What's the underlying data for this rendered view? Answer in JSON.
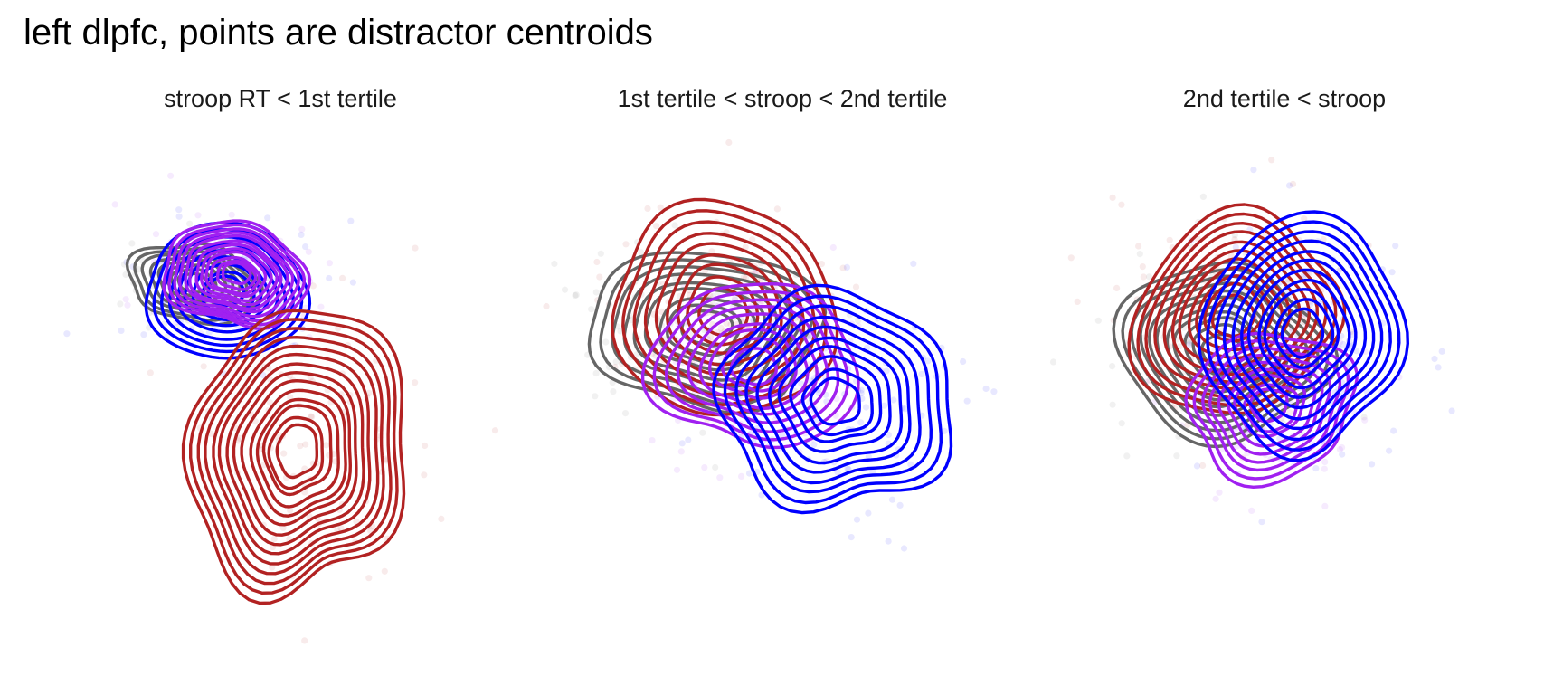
{
  "title": "left dlpfc, points are distractor centroids",
  "colors": {
    "red": "#b22222",
    "blue": "#0000ff",
    "purple": "#a020f0",
    "gray": "#666666"
  },
  "chart_data": [
    {
      "type": "scatter",
      "subtitle": "stroop RT < 1st tertile",
      "grid": false,
      "legend": "none",
      "series": [
        {
          "color": "gray",
          "center": [
            185,
            175
          ],
          "spread": [
            70,
            45
          ],
          "rot": 0.1,
          "levels": 8
        },
        {
          "color": "blue",
          "center": [
            220,
            185
          ],
          "spread": [
            92,
            72
          ],
          "rot": 0.0,
          "levels": 9
        },
        {
          "color": "purple",
          "center": [
            230,
            165
          ],
          "spread": [
            78,
            58
          ],
          "rot": 0.2,
          "levels": 12
        },
        {
          "color": "red",
          "center": [
            300,
            360
          ],
          "spread": [
            120,
            158
          ],
          "rot": 0.05,
          "levels": 14
        }
      ]
    },
    {
      "type": "scatter",
      "subtitle": "1st tertile < stroop < 2nd tertile",
      "grid": false,
      "legend": "none",
      "series": [
        {
          "color": "gray",
          "center": [
            195,
            225
          ],
          "spread": [
            128,
            88
          ],
          "rot": 0.05,
          "levels": 9
        },
        {
          "color": "red",
          "center": [
            215,
            205
          ],
          "spread": [
            122,
            118
          ],
          "rot": 0.1,
          "levels": 9
        },
        {
          "color": "purple",
          "center": [
            250,
            265
          ],
          "spread": [
            108,
            95
          ],
          "rot": 0.0,
          "levels": 9
        },
        {
          "color": "blue",
          "center": [
            340,
            305
          ],
          "spread": [
            130,
            118
          ],
          "rot": 0.3,
          "levels": 10
        }
      ]
    },
    {
      "type": "scatter",
      "subtitle": "2nd tertile < stroop",
      "grid": false,
      "legend": "none",
      "series": [
        {
          "color": "gray",
          "center": [
            210,
            250
          ],
          "spread": [
            112,
            98
          ],
          "rot": 0.05,
          "levels": 11
        },
        {
          "color": "red",
          "center": [
            225,
            210
          ],
          "spread": [
            112,
            110
          ],
          "rot": 0.0,
          "levels": 11
        },
        {
          "color": "purple",
          "center": [
            265,
            310
          ],
          "spread": [
            95,
            78
          ],
          "rot": 0.0,
          "levels": 9
        },
        {
          "color": "blue",
          "center": [
            300,
            230
          ],
          "spread": [
            108,
            130
          ],
          "rot": 0.1,
          "levels": 11
        }
      ]
    }
  ]
}
